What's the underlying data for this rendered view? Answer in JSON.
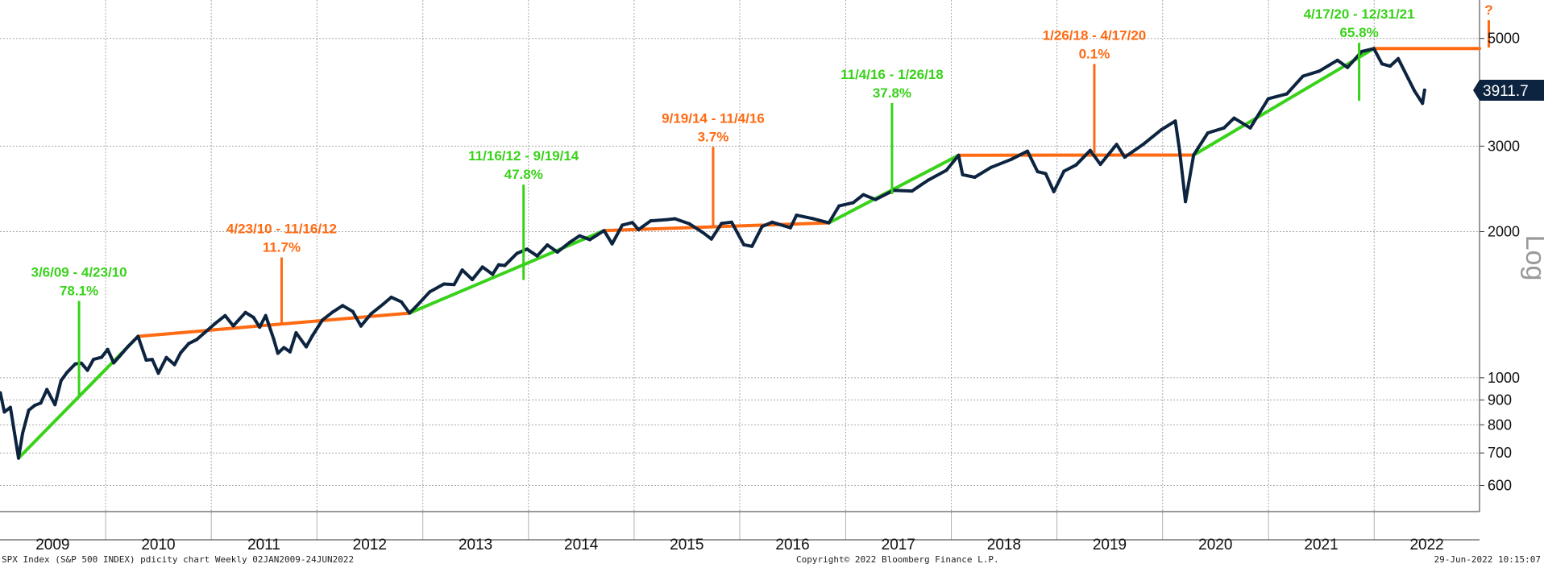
{
  "chart_data": {
    "type": "line",
    "y_scale": "log",
    "scale_label": "Log",
    "ylim": [
      530,
      6000
    ],
    "x_years": [
      "2009",
      "2010",
      "2011",
      "2012",
      "2013",
      "2014",
      "2015",
      "2016",
      "2017",
      "2018",
      "2019",
      "2020",
      "2021",
      "2022"
    ],
    "y_ticks": [
      600,
      700,
      800,
      900,
      1000,
      2000,
      3000,
      5000
    ],
    "grid": true,
    "last_value_label": "3911.7",
    "last_value": 3911.7,
    "series": [
      {
        "color": "#0d2440",
        "points": [
          [
            "2009-01-02",
            931
          ],
          [
            "2009-01-16",
            850
          ],
          [
            "2009-02-06",
            869
          ],
          [
            "2009-02-20",
            770
          ],
          [
            "2009-03-06",
            683
          ],
          [
            "2009-03-20",
            768
          ],
          [
            "2009-04-10",
            857
          ],
          [
            "2009-05-01",
            877
          ],
          [
            "2009-05-22",
            887
          ],
          [
            "2009-06-12",
            946
          ],
          [
            "2009-07-10",
            880
          ],
          [
            "2009-07-31",
            987
          ],
          [
            "2009-08-21",
            1026
          ],
          [
            "2009-09-18",
            1068
          ],
          [
            "2009-10-09",
            1072
          ],
          [
            "2009-10-30",
            1036
          ],
          [
            "2009-11-20",
            1091
          ],
          [
            "2009-12-18",
            1102
          ],
          [
            "2010-01-08",
            1144
          ],
          [
            "2010-01-29",
            1073
          ],
          [
            "2010-02-19",
            1109
          ],
          [
            "2010-03-19",
            1159
          ],
          [
            "2010-04-23",
            1217
          ],
          [
            "2010-05-21",
            1087
          ],
          [
            "2010-06-11",
            1091
          ],
          [
            "2010-07-02",
            1022
          ],
          [
            "2010-07-30",
            1101
          ],
          [
            "2010-08-27",
            1064
          ],
          [
            "2010-09-17",
            1125
          ],
          [
            "2010-10-15",
            1176
          ],
          [
            "2010-11-12",
            1199
          ],
          [
            "2010-12-10",
            1240
          ],
          [
            "2011-01-14",
            1293
          ],
          [
            "2011-02-18",
            1343
          ],
          [
            "2011-03-18",
            1279
          ],
          [
            "2011-04-29",
            1363
          ],
          [
            "2011-05-27",
            1331
          ],
          [
            "2011-06-17",
            1271
          ],
          [
            "2011-07-08",
            1343
          ],
          [
            "2011-08-05",
            1199
          ],
          [
            "2011-08-19",
            1123
          ],
          [
            "2011-09-09",
            1154
          ],
          [
            "2011-09-30",
            1131
          ],
          [
            "2011-10-21",
            1238
          ],
          [
            "2011-11-25",
            1158
          ],
          [
            "2011-12-16",
            1219
          ],
          [
            "2012-01-20",
            1315
          ],
          [
            "2012-02-24",
            1365
          ],
          [
            "2012-03-30",
            1408
          ],
          [
            "2012-05-04",
            1369
          ],
          [
            "2012-06-01",
            1278
          ],
          [
            "2012-07-06",
            1354
          ],
          [
            "2012-08-17",
            1418
          ],
          [
            "2012-09-14",
            1465
          ],
          [
            "2012-10-19",
            1433
          ],
          [
            "2012-11-16",
            1359
          ],
          [
            "2012-12-14",
            1413
          ],
          [
            "2013-01-25",
            1503
          ],
          [
            "2013-03-15",
            1560
          ],
          [
            "2013-04-19",
            1555
          ],
          [
            "2013-05-17",
            1667
          ],
          [
            "2013-06-21",
            1593
          ],
          [
            "2013-07-26",
            1691
          ],
          [
            "2013-08-30",
            1633
          ],
          [
            "2013-09-20",
            1709
          ],
          [
            "2013-10-11",
            1703
          ],
          [
            "2013-11-22",
            1804
          ],
          [
            "2013-12-27",
            1841
          ],
          [
            "2014-01-31",
            1782
          ],
          [
            "2014-03-07",
            1878
          ],
          [
            "2014-04-11",
            1815
          ],
          [
            "2014-05-23",
            1900
          ],
          [
            "2014-06-27",
            1961
          ],
          [
            "2014-08-01",
            1925
          ],
          [
            "2014-09-19",
            2010
          ],
          [
            "2014-10-17",
            1887
          ],
          [
            "2014-11-21",
            2063
          ],
          [
            "2014-12-26",
            2088
          ],
          [
            "2015-01-16",
            2019
          ],
          [
            "2015-02-27",
            2105
          ],
          [
            "2015-04-24",
            2117
          ],
          [
            "2015-05-22",
            2126
          ],
          [
            "2015-07-10",
            2077
          ],
          [
            "2015-08-28",
            1989
          ],
          [
            "2015-09-25",
            1931
          ],
          [
            "2015-10-30",
            2079
          ],
          [
            "2015-12-04",
            2092
          ],
          [
            "2016-01-15",
            1880
          ],
          [
            "2016-02-12",
            1865
          ],
          [
            "2016-03-18",
            2049
          ],
          [
            "2016-04-22",
            2091
          ],
          [
            "2016-06-24",
            2037
          ],
          [
            "2016-07-15",
            2162
          ],
          [
            "2016-09-09",
            2128
          ],
          [
            "2016-11-04",
            2085
          ],
          [
            "2016-12-09",
            2259
          ],
          [
            "2017-01-27",
            2294
          ],
          [
            "2017-03-03",
            2383
          ],
          [
            "2017-04-14",
            2328
          ],
          [
            "2017-06-16",
            2433
          ],
          [
            "2017-08-18",
            2425
          ],
          [
            "2017-10-13",
            2553
          ],
          [
            "2017-12-15",
            2675
          ],
          [
            "2018-01-26",
            2873
          ],
          [
            "2018-02-09",
            2620
          ],
          [
            "2018-03-23",
            2588
          ],
          [
            "2018-05-18",
            2712
          ],
          [
            "2018-07-27",
            2818
          ],
          [
            "2018-09-21",
            2930
          ],
          [
            "2018-10-26",
            2658
          ],
          [
            "2018-11-23",
            2633
          ],
          [
            "2018-12-21",
            2417
          ],
          [
            "2019-01-25",
            2664
          ],
          [
            "2019-03-08",
            2743
          ],
          [
            "2019-04-26",
            2940
          ],
          [
            "2019-05-31",
            2752
          ],
          [
            "2019-07-26",
            3025
          ],
          [
            "2019-08-23",
            2847
          ],
          [
            "2019-10-25",
            3023
          ],
          [
            "2019-12-27",
            3240
          ],
          [
            "2020-02-14",
            3380
          ],
          [
            "2020-02-28",
            2954
          ],
          [
            "2020-03-20",
            2305
          ],
          [
            "2020-04-17",
            2875
          ],
          [
            "2020-06-05",
            3194
          ],
          [
            "2020-07-31",
            3271
          ],
          [
            "2020-09-04",
            3427
          ],
          [
            "2020-10-30",
            3270
          ],
          [
            "2020-12-31",
            3756
          ],
          [
            "2021-03-05",
            3842
          ],
          [
            "2021-04-30",
            4181
          ],
          [
            "2021-06-25",
            4281
          ],
          [
            "2021-08-27",
            4509
          ],
          [
            "2021-10-01",
            4357
          ],
          [
            "2021-11-19",
            4698
          ],
          [
            "2021-12-31",
            4766
          ],
          [
            "2022-01-28",
            4432
          ],
          [
            "2022-02-25",
            4385
          ],
          [
            "2022-03-25",
            4543
          ],
          [
            "2022-04-29",
            4132
          ],
          [
            "2022-05-20",
            3901
          ],
          [
            "2022-06-17",
            3675
          ],
          [
            "2022-06-24",
            3912
          ]
        ]
      }
    ],
    "trend_segments": [
      {
        "color": "#39d21a",
        "points": [
          [
            "2009-03-06",
            683
          ],
          [
            "2010-04-23",
            1217
          ]
        ]
      },
      {
        "color": "#ff6a12",
        "points": [
          [
            "2010-04-23",
            1217
          ],
          [
            "2012-11-16",
            1359
          ]
        ]
      },
      {
        "color": "#39d21a",
        "points": [
          [
            "2012-11-16",
            1359
          ],
          [
            "2014-09-19",
            2010
          ]
        ]
      },
      {
        "color": "#ff6a12",
        "points": [
          [
            "2014-09-19",
            2010
          ],
          [
            "2016-11-04",
            2085
          ]
        ]
      },
      {
        "color": "#39d21a",
        "points": [
          [
            "2016-11-04",
            2085
          ],
          [
            "2018-01-26",
            2873
          ]
        ]
      },
      {
        "color": "#ff6a12",
        "points": [
          [
            "2018-01-26",
            2873
          ],
          [
            "2020-04-17",
            2875
          ]
        ]
      },
      {
        "color": "#39d21a",
        "points": [
          [
            "2020-04-17",
            2875
          ],
          [
            "2021-12-31",
            4766
          ]
        ]
      },
      {
        "color": "#ff6a12",
        "points": [
          [
            "2021-12-31",
            4766
          ],
          [
            "2022-12-31",
            4766
          ]
        ]
      }
    ],
    "annotations": [
      {
        "color": "#39d21a",
        "date": "2009-10-01",
        "y_from": 920,
        "y_to": 1440,
        "range": "3/6/09 - 4/23/10",
        "change": "78.1%"
      },
      {
        "color": "#ff6a12",
        "date": "2011-09-01",
        "y_from": 1290,
        "y_to": 1770,
        "range": "4/23/10 - 11/16/12",
        "change": "11.7%"
      },
      {
        "color": "#39d21a",
        "date": "2013-12-15",
        "y_from": 1590,
        "y_to": 2500,
        "range": "11/16/12 - 9/19/14",
        "change": "47.8%"
      },
      {
        "color": "#ff6a12",
        "date": "2015-10-01",
        "y_from": 2050,
        "y_to": 2990,
        "range": "9/19/14 - 11/4/16",
        "change": "3.7%"
      },
      {
        "color": "#39d21a",
        "date": "2017-06-10",
        "y_from": 2390,
        "y_to": 3680,
        "range": "11/4/16 - 1/26/18",
        "change": "37.8%"
      },
      {
        "color": "#ff6a12",
        "date": "2019-05-10",
        "y_from": 2900,
        "y_to": 4430,
        "range": "1/26/18 - 4/17/20",
        "change": "0.1%"
      },
      {
        "color": "#39d21a",
        "date": "2021-11-10",
        "y_from": 3720,
        "y_to": 4900,
        "range": "4/17/20 - 12/31/21",
        "change": "65.8%"
      },
      {
        "color": "#ff6a12",
        "date": "2023-02-01",
        "y_from": 4790,
        "y_to": 5450,
        "range": "",
        "change": "?"
      }
    ]
  },
  "footer": {
    "left": "SPX Index (S&P 500 INDEX) pdicity chart  Weekly 02JAN2009-24JUN2022",
    "center": "Copyright© 2022 Bloomberg Finance L.P.",
    "right": "29-Jun-2022 10:15:07"
  }
}
